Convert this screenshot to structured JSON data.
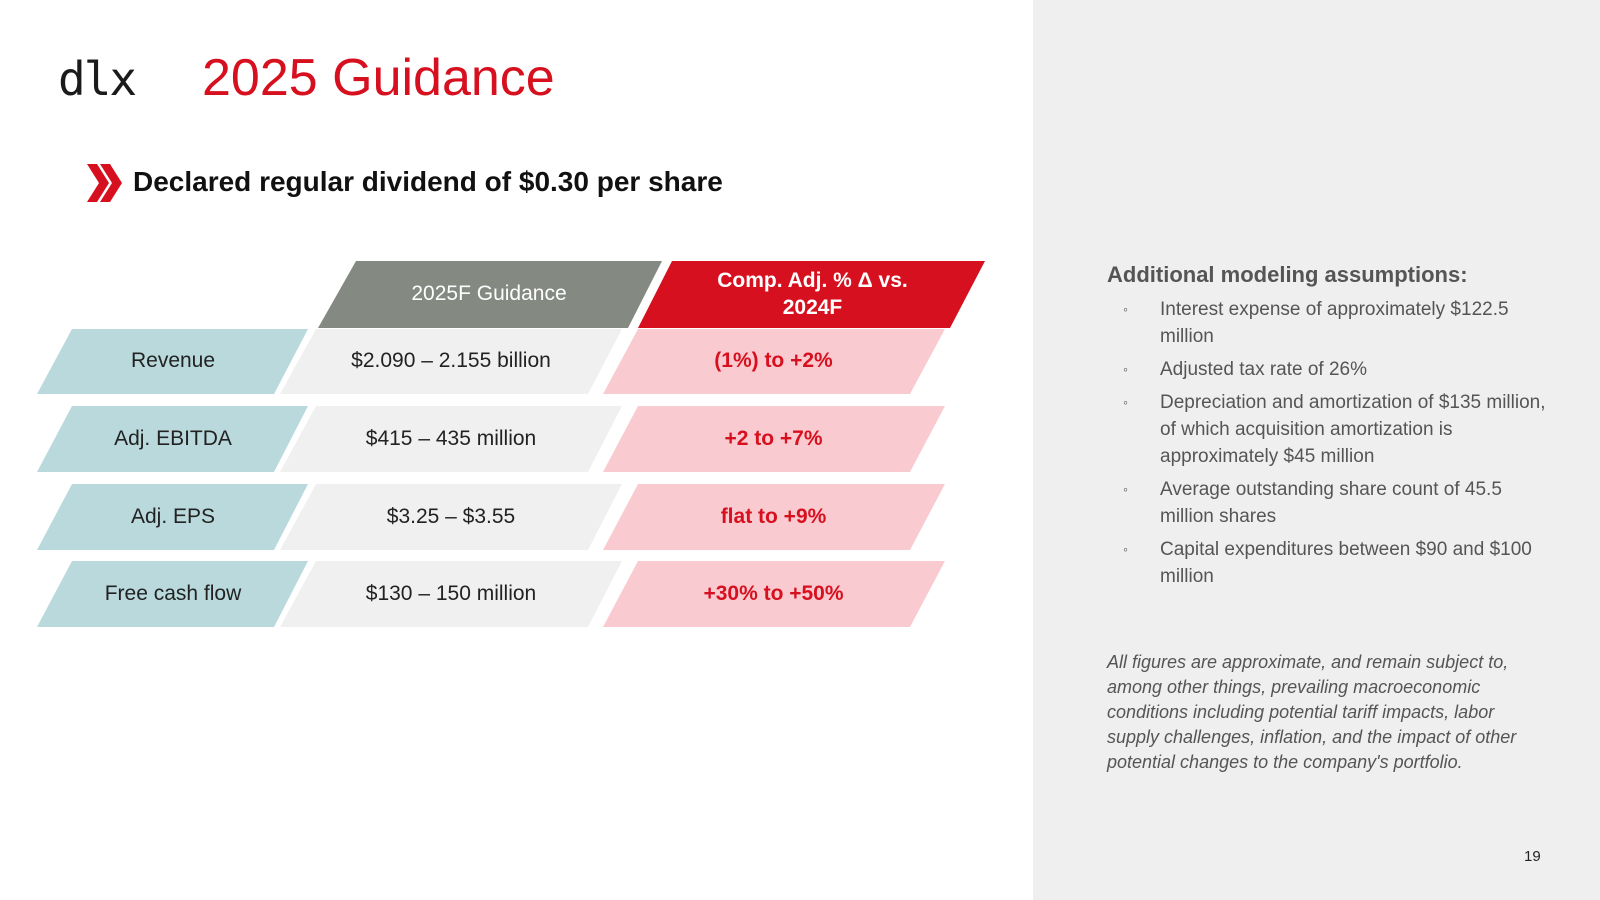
{
  "logo": {
    "text": "dlx"
  },
  "title": "2025 Guidance",
  "headline": "Declared regular dividend of $0.30 per share",
  "colors": {
    "brand_red": "#d7101f",
    "header_gray": "#848a82",
    "metric_blue": "#b9d9dc",
    "guidance_gray": "#f0f0f0",
    "comp_pink": "#f9cbd0",
    "panel_gray": "#efefef"
  },
  "table": {
    "headers": {
      "guidance": "2025F Guidance",
      "comp_line1": "Comp. Adj. % Δ vs.",
      "comp_line2": "2024F"
    },
    "rows": [
      {
        "metric": "Revenue",
        "guidance": "$2.090 – 2.155 billion",
        "comp": "(1%) to +2%"
      },
      {
        "metric": "Adj. EBITDA",
        "guidance": "$415 – 435 million",
        "comp": "+2 to +7%"
      },
      {
        "metric": "Adj. EPS",
        "guidance": "$3.25 – $3.55",
        "comp": "flat to +9%"
      },
      {
        "metric": "Free cash flow",
        "guidance": "$130 – 150 million",
        "comp": "+30% to +50%"
      }
    ]
  },
  "assumptions": {
    "title": "Additional modeling assumptions:",
    "bullet_icon": "hollow-circle-icon",
    "items": [
      "Interest expense of approximately $122.5 million",
      "Adjusted tax rate of 26%",
      "Depreciation and amortization of $135 million, of which acquisition amortization is approximately $45 million",
      "Average outstanding share count of 45.5 million shares",
      "Capital expenditures between $90 and $100 million"
    ]
  },
  "disclaimer": "All figures are approximate, and remain subject to, among other things, prevailing macroeconomic conditions including potential tariff impacts, labor supply challenges, inflation, and the impact of other potential changes to the company's portfolio.",
  "page_number": "19"
}
